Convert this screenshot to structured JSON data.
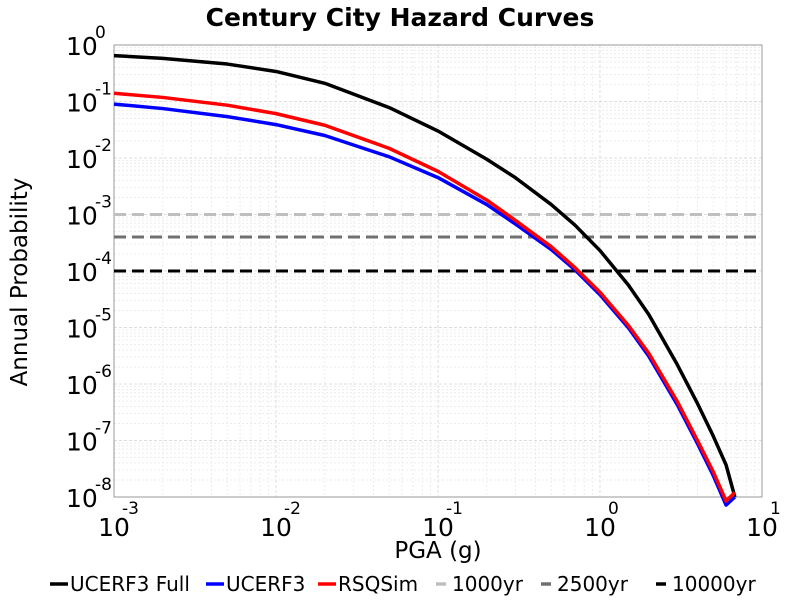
{
  "chart_data": {
    "type": "line",
    "title": "Century City Hazard Curves",
    "xlabel": "PGA (g)",
    "ylabel": "Annual Probability",
    "x_scale": "log",
    "y_scale": "log",
    "xlim": [
      0.001,
      10
    ],
    "ylim": [
      1e-08,
      1
    ],
    "grid": true,
    "legend_position": "bottom",
    "x_ticks": [
      {
        "value": 0.001,
        "base": "10",
        "exp": "-3"
      },
      {
        "value": 0.01,
        "base": "10",
        "exp": "-2"
      },
      {
        "value": 0.1,
        "base": "10",
        "exp": "-1"
      },
      {
        "value": 1,
        "base": "10",
        "exp": "0"
      },
      {
        "value": 10,
        "base": "10",
        "exp": "1"
      }
    ],
    "y_ticks": [
      {
        "value": 1,
        "base": "10",
        "exp": "0"
      },
      {
        "value": 0.1,
        "base": "10",
        "exp": "-1"
      },
      {
        "value": 0.01,
        "base": "10",
        "exp": "-2"
      },
      {
        "value": 0.001,
        "base": "10",
        "exp": "-3"
      },
      {
        "value": 0.0001,
        "base": "10",
        "exp": "-4"
      },
      {
        "value": 1e-05,
        "base": "10",
        "exp": "-5"
      },
      {
        "value": 1e-06,
        "base": "10",
        "exp": "-6"
      },
      {
        "value": 1e-07,
        "base": "10",
        "exp": "-7"
      },
      {
        "value": 1e-08,
        "base": "10",
        "exp": "-8"
      }
    ],
    "series": [
      {
        "name": "UCERF3 Full",
        "color": "#000000",
        "style": "solid",
        "x": [
          0.001,
          0.002,
          0.005,
          0.01,
          0.02,
          0.05,
          0.1,
          0.2,
          0.3,
          0.5,
          0.7,
          1.0,
          1.5,
          2.0,
          3.0,
          4.0,
          5.0,
          6.0,
          6.8
        ],
        "y": [
          0.65,
          0.58,
          0.46,
          0.34,
          0.21,
          0.078,
          0.03,
          0.0095,
          0.0045,
          0.0015,
          0.00065,
          0.00023,
          5.6e-05,
          1.7e-05,
          2.2e-06,
          4.5e-07,
          1.2e-07,
          3.7e-08,
          1e-08
        ]
      },
      {
        "name": "UCERF3",
        "color": "#0000ff",
        "style": "solid",
        "x": [
          0.001,
          0.002,
          0.005,
          0.01,
          0.02,
          0.05,
          0.1,
          0.2,
          0.3,
          0.5,
          0.7,
          1.0,
          1.5,
          2.0,
          3.0,
          4.0,
          5.0,
          6.0,
          6.8
        ],
        "y": [
          0.09,
          0.075,
          0.054,
          0.039,
          0.025,
          0.0105,
          0.0045,
          0.0015,
          0.00068,
          0.00024,
          0.000105,
          3.8e-05,
          9.8e-06,
          3.1e-06,
          4.3e-07,
          8.8e-08,
          2.4e-08,
          7.2e-09,
          1e-08
        ]
      },
      {
        "name": "RSQSim",
        "color": "#ff0000",
        "style": "solid",
        "x": [
          0.001,
          0.002,
          0.005,
          0.01,
          0.02,
          0.05,
          0.1,
          0.2,
          0.3,
          0.5,
          0.7,
          1.0,
          1.5,
          2.0,
          3.0,
          4.0,
          5.0,
          6.0,
          6.8
        ],
        "y": [
          0.14,
          0.118,
          0.086,
          0.061,
          0.038,
          0.0148,
          0.0058,
          0.0018,
          0.00079,
          0.00027,
          0.000115,
          4.2e-05,
          1.08e-05,
          3.5e-06,
          4.9e-07,
          1e-07,
          2.8e-08,
          8.5e-09,
          1.2e-08
        ]
      },
      {
        "name": "1000yr",
        "color": "#bfbfbf",
        "style": "dashed",
        "x": [
          0.001,
          10
        ],
        "y": [
          0.001,
          0.001
        ]
      },
      {
        "name": "2500yr",
        "color": "#707070",
        "style": "dashed",
        "x": [
          0.001,
          10
        ],
        "y": [
          0.0004,
          0.0004
        ]
      },
      {
        "name": "10000yr",
        "color": "#000000",
        "style": "dashed",
        "x": [
          0.001,
          10
        ],
        "y": [
          0.0001,
          0.0001
        ]
      }
    ]
  }
}
